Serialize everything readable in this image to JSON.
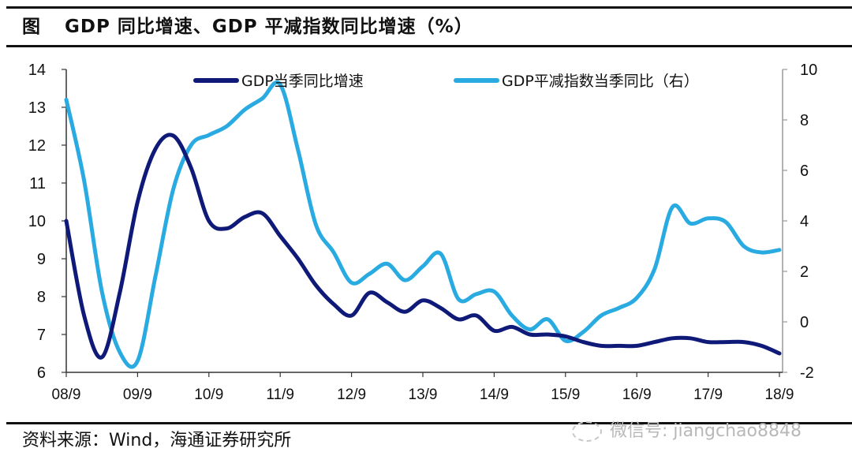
{
  "header": {
    "figure_label": "图",
    "title": "GDP 同比增速、GDP 平减指数同比增速（%）"
  },
  "footer": {
    "source": "资料来源：Wind，海通证券研究所",
    "watermark": "微信号: jiangchao8848"
  },
  "colors": {
    "gdp_yoy": "#0f1a78",
    "deflator": "#29abe2",
    "axis": "#333333",
    "rule": "#111111"
  },
  "chart_data": {
    "type": "line",
    "title": "GDP 同比增速、GDP 平减指数同比增速（%）",
    "xlabel": "",
    "ylabel_left": "",
    "ylabel_right": "",
    "frequency": "quarterly",
    "x_start": "2008Q3",
    "x_end": "2018Q3",
    "x_tick_labels": [
      "08/9",
      "09/9",
      "10/9",
      "11/9",
      "12/9",
      "13/9",
      "14/9",
      "15/9",
      "16/9",
      "17/9",
      "18/9"
    ],
    "y_left": {
      "range": [
        6,
        14
      ],
      "ticks": [
        6,
        7,
        8,
        9,
        10,
        11,
        12,
        13,
        14
      ]
    },
    "y_right": {
      "range": [
        -2,
        10
      ],
      "ticks": [
        -2,
        0,
        2,
        4,
        6,
        8,
        10
      ]
    },
    "grid": false,
    "legend_position": "top",
    "series": [
      {
        "name": "GDP当季同比增速",
        "axis": "left",
        "values": [
          10.0,
          7.5,
          6.4,
          8.1,
          10.5,
          11.9,
          12.25,
          11.4,
          10.0,
          9.8,
          10.1,
          10.2,
          9.6,
          9.0,
          8.3,
          7.8,
          7.5,
          8.1,
          7.85,
          7.6,
          7.9,
          7.7,
          7.4,
          7.5,
          7.1,
          7.2,
          7.0,
          7.0,
          6.95,
          6.8,
          6.7,
          6.7,
          6.7,
          6.8,
          6.9,
          6.9,
          6.8,
          6.8,
          6.8,
          6.7,
          6.5
        ]
      },
      {
        "name": "GDP平减指数当季同比（右）",
        "axis": "right",
        "values": [
          8.8,
          5.6,
          1.2,
          -1.2,
          -1.55,
          1.8,
          5.25,
          7.0,
          7.4,
          7.75,
          8.4,
          8.85,
          9.4,
          6.8,
          3.85,
          2.75,
          1.55,
          1.9,
          2.3,
          1.65,
          2.2,
          2.7,
          0.9,
          1.1,
          1.2,
          0.25,
          -0.3,
          0.1,
          -0.75,
          -0.4,
          0.25,
          0.55,
          0.95,
          2.1,
          4.55,
          3.9,
          4.1,
          3.95,
          3.0,
          2.75,
          2.85
        ]
      }
    ]
  }
}
